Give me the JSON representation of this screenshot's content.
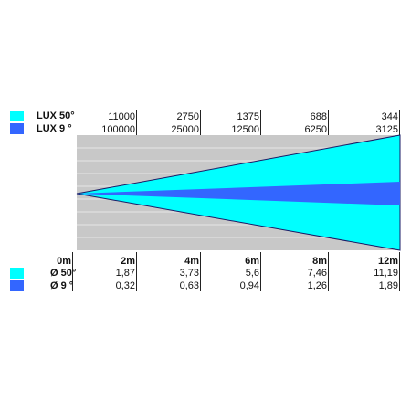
{
  "colors": {
    "wide_beam": "#00ffff",
    "narrow_beam": "#3366ff",
    "background_panel": "#c8c8c8",
    "grid_line": "#e6e6e6",
    "outline": "#1a1a66"
  },
  "lux": {
    "wide_label": "LUX 50°",
    "narrow_label": "LUX 9  °",
    "wide_values": [
      "11000",
      "2750",
      "1375",
      "688",
      "344"
    ],
    "narrow_values": [
      "100000",
      "25000",
      "12500",
      "6250",
      "3125"
    ]
  },
  "distances": [
    "0m",
    "2m",
    "4m",
    "6m",
    "8m",
    "12m"
  ],
  "diameter": {
    "wide_label": "Ø 50°",
    "narrow_label": "Ø 9  °",
    "wide_values": [
      "1,87",
      "3,73",
      "5,6",
      "7,46",
      "11,19"
    ],
    "narrow_values": [
      "0,32",
      "0,63",
      "0,94",
      "1,26",
      "1,89"
    ]
  },
  "beam": {
    "wide_angle_deg": 50,
    "narrow_angle_deg": 9,
    "max_distance_m": 12
  }
}
